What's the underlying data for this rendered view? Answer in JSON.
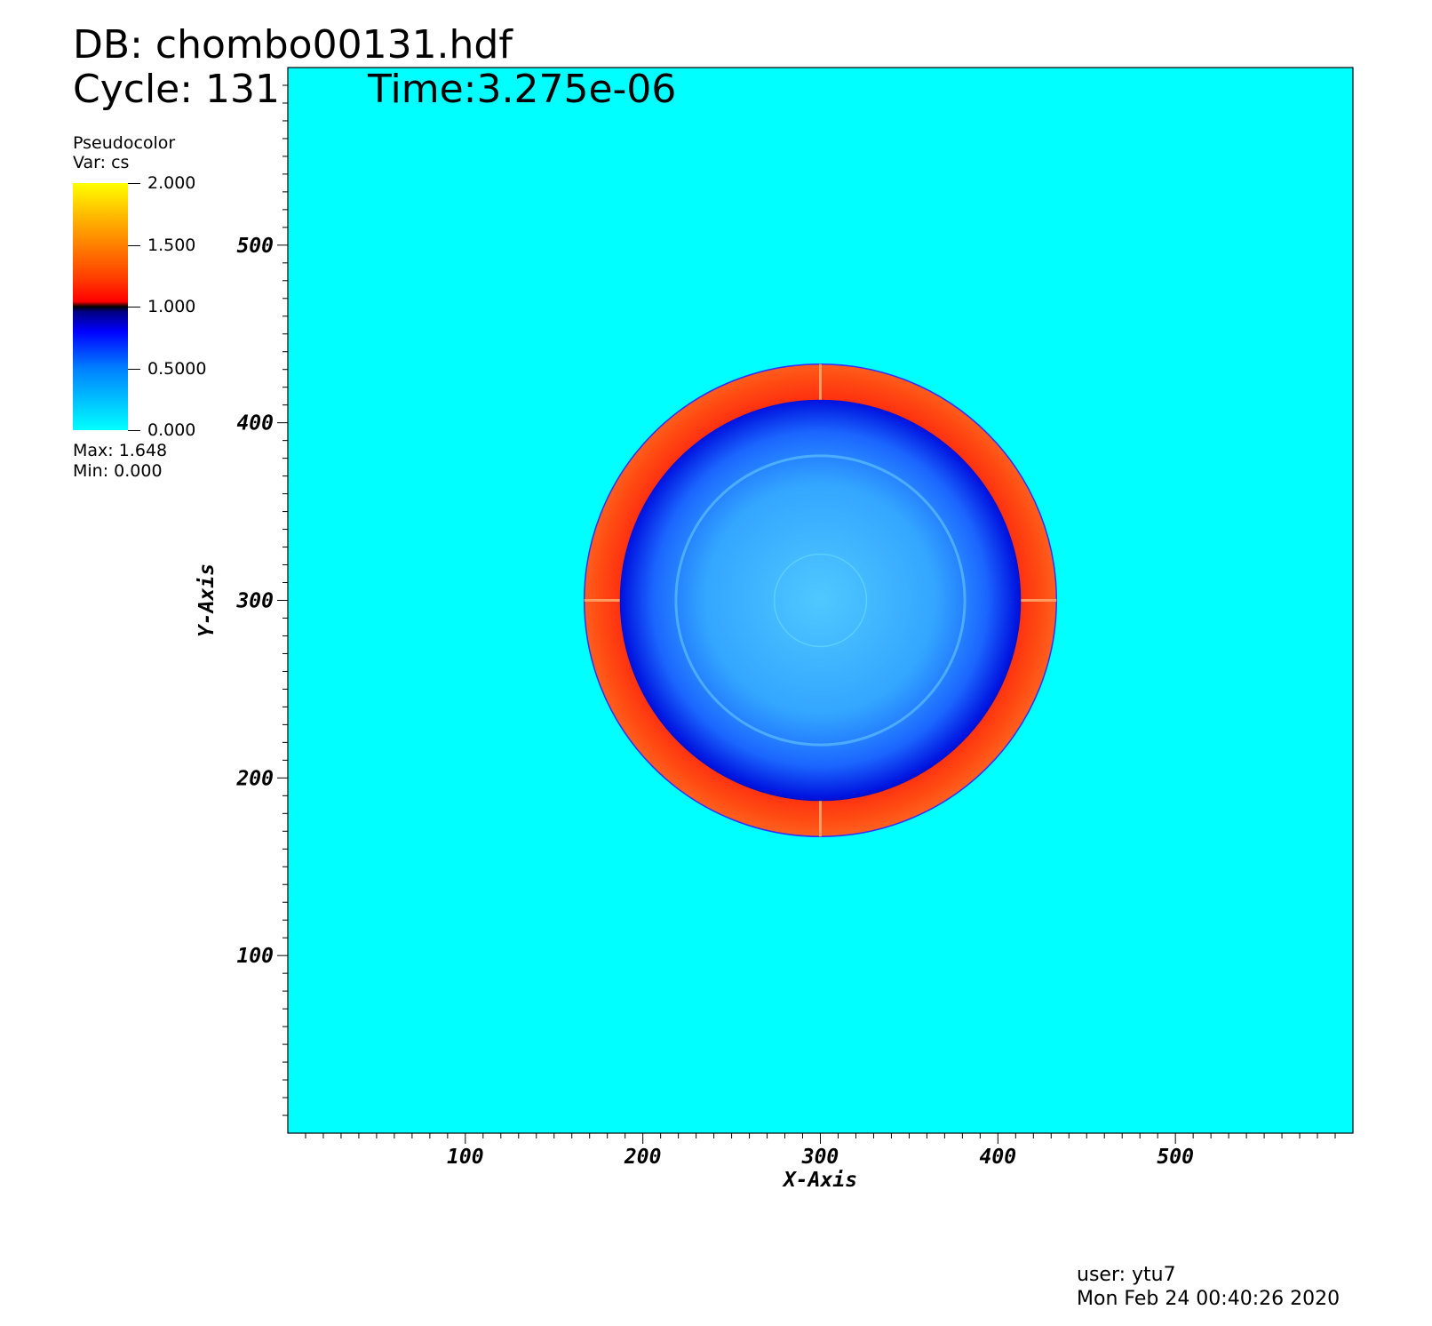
{
  "header": {
    "db_label": "DB: chombo00131.hdf",
    "cycle_label": "Cycle: 131",
    "time_label": "Time:3.275e-06"
  },
  "legend": {
    "title": "Pseudocolor",
    "var": "Var: cs",
    "max": "Max:  1.648",
    "min": "Min:  0.000",
    "ticks": [
      "2.000",
      "1.500",
      "1.000",
      "0.5000",
      "0.000"
    ],
    "tick_values": [
      2.0,
      1.5,
      1.0,
      0.5,
      0.0
    ]
  },
  "footer": {
    "user": "user: ytu7",
    "date": "Mon Feb 24 00:40:26 2020"
  },
  "chart_data": {
    "type": "heatmap",
    "xlabel": "X-Axis",
    "ylabel": "Y-Axis",
    "xlim": [
      0,
      600
    ],
    "ylim": [
      0,
      600
    ],
    "x_ticks": [
      100,
      200,
      300,
      400,
      500
    ],
    "y_ticks": [
      100,
      200,
      300,
      400,
      500
    ],
    "x_tick_labels": [
      "100",
      "200",
      "300",
      "400",
      "500"
    ],
    "y_tick_labels": [
      "100",
      "200",
      "300",
      "400",
      "500"
    ],
    "color_range": [
      0.0,
      2.0
    ],
    "background_value": 0.0,
    "colors": {
      "background": "#00ffff",
      "shell": "#ff4a10",
      "interior": "#1a66ff",
      "core": "#2aa8ff",
      "axis": "#000000"
    },
    "features": {
      "center": [
        300,
        300
      ],
      "shell_outer_radius": 133,
      "shell_inner_radius": 113,
      "core_radius": 26
    }
  }
}
